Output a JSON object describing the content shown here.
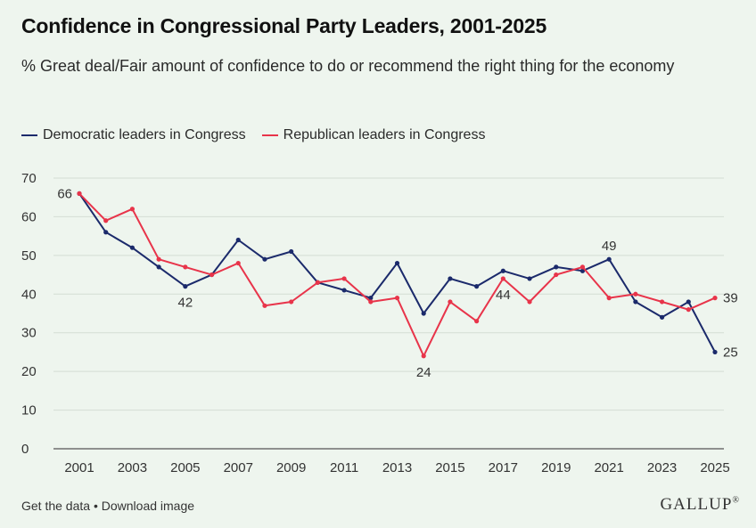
{
  "chart_data": {
    "type": "line",
    "title": "Confidence in Congressional Party Leaders, 2001-2025",
    "subtitle": "% Great deal/Fair amount of confidence to do or recommend the right thing for the economy",
    "xlabel": "",
    "ylabel": "",
    "ylim": [
      0,
      70
    ],
    "yticks": [
      0,
      10,
      20,
      30,
      40,
      50,
      60,
      70
    ],
    "xticks": [
      2001,
      2003,
      2005,
      2007,
      2009,
      2011,
      2013,
      2015,
      2017,
      2019,
      2021,
      2023,
      2025
    ],
    "x": [
      2001,
      2002,
      2003,
      2004,
      2005,
      2006,
      2007,
      2008,
      2009,
      2010,
      2011,
      2012,
      2013,
      2014,
      2015,
      2016,
      2017,
      2018,
      2019,
      2020,
      2021,
      2022,
      2023,
      2024,
      2025
    ],
    "series": [
      {
        "name": "Democratic leaders in Congress",
        "color": "#1b2a6b",
        "values": [
          66,
          56,
          52,
          47,
          42,
          45,
          54,
          49,
          51,
          43,
          41,
          39,
          48,
          35,
          44,
          42,
          46,
          44,
          47,
          46,
          49,
          38,
          34,
          38,
          25
        ],
        "labels": [
          {
            "x": 2001,
            "text": "66",
            "pos": "left"
          },
          {
            "x": 2005,
            "text": "42",
            "pos": "below"
          },
          {
            "x": 2021,
            "text": "49",
            "pos": "above"
          },
          {
            "x": 2025,
            "text": "25",
            "pos": "right"
          }
        ]
      },
      {
        "name": "Republican leaders in Congress",
        "color": "#e8344a",
        "values": [
          66,
          59,
          62,
          49,
          47,
          45,
          48,
          37,
          38,
          43,
          44,
          38,
          39,
          24,
          38,
          33,
          44,
          38,
          45,
          47,
          39,
          40,
          38,
          36,
          39
        ],
        "labels": [
          {
            "x": 2014,
            "text": "24",
            "pos": "below"
          },
          {
            "x": 2017,
            "text": "44",
            "pos": "below"
          },
          {
            "x": 2025,
            "text": "39",
            "pos": "right"
          }
        ]
      }
    ],
    "grid": true,
    "legend": "top-left"
  },
  "footer": {
    "get_data": "Get the data",
    "separator": "•",
    "download": "Download image"
  },
  "brand": "GALLUP",
  "brand_mark": "®"
}
